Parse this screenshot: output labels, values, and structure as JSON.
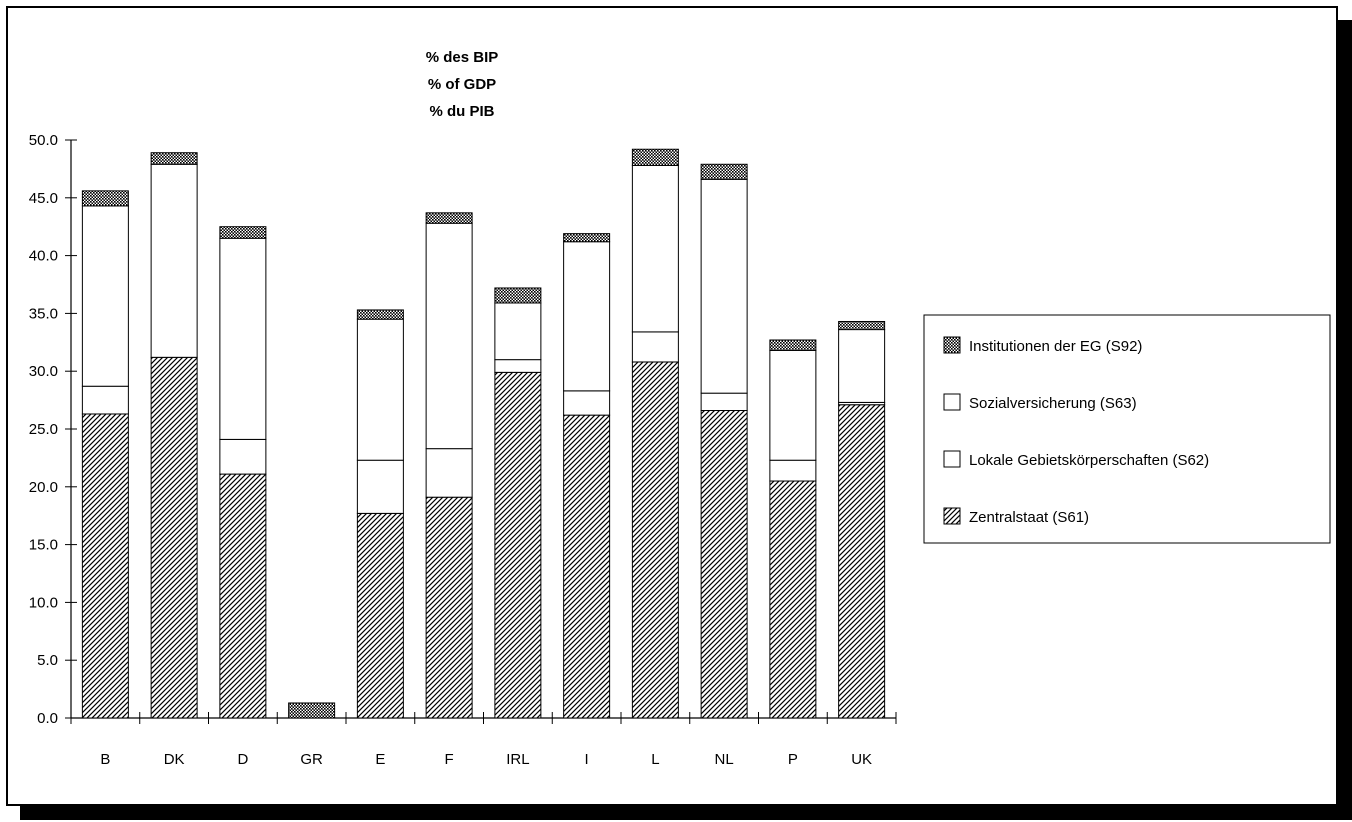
{
  "chart_data": {
    "type": "bar",
    "stacked": true,
    "title": [
      "% des BIP",
      "% of GDP",
      "% du PIB"
    ],
    "xlabel": "",
    "ylabel": "",
    "ylim": [
      0,
      50
    ],
    "yticks": [
      "0.0",
      "5.0",
      "10.0",
      "15.0",
      "20.0",
      "25.0",
      "30.0",
      "35.0",
      "40.0",
      "45.0",
      "50.0"
    ],
    "categories": [
      "B",
      "DK",
      "D",
      "GR",
      "E",
      "F",
      "IRL",
      "I",
      "L",
      "NL",
      "P",
      "UK"
    ],
    "series": [
      {
        "name": "Zentralstaat (S61)",
        "pattern": "diagonal-hatch",
        "values": [
          26.3,
          31.2,
          21.1,
          0,
          17.7,
          19.1,
          29.9,
          26.2,
          30.8,
          26.6,
          20.5,
          27.1
        ]
      },
      {
        "name": "Lokale Gebietskörperschaften (S62)",
        "pattern": "white",
        "values": [
          2.4,
          0,
          3.0,
          0,
          4.6,
          4.2,
          1.1,
          2.1,
          2.6,
          1.5,
          1.8,
          0.2
        ]
      },
      {
        "name": "Sozialversicherung (S63)",
        "pattern": "white",
        "values": [
          15.6,
          16.7,
          17.4,
          0,
          12.2,
          19.5,
          4.9,
          12.9,
          14.4,
          18.5,
          9.5,
          6.3
        ]
      },
      {
        "name": "Institutionen der EG (S92)",
        "pattern": "crosshatch",
        "values": [
          1.3,
          1.0,
          1.0,
          1.3,
          0.8,
          0.9,
          1.3,
          0.7,
          1.4,
          1.3,
          0.9,
          0.7
        ]
      }
    ],
    "legend": {
      "position": "right",
      "entries": [
        "Institutionen der EG (S92)",
        "Sozialversicherung (S63)",
        "Lokale Gebietskörperschaften (S62)",
        "Zentralstaat (S61)"
      ]
    },
    "grid": false
  }
}
